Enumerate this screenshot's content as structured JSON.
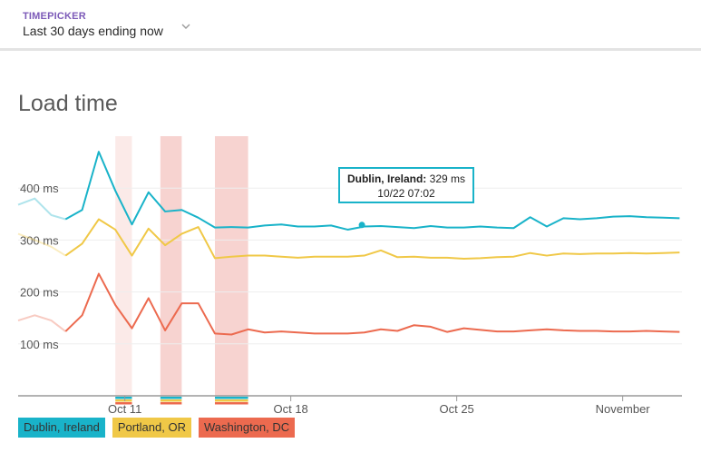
{
  "timepicker": {
    "label": "TIMEPICKER",
    "value": "Last 30 days ending now"
  },
  "chart": {
    "title": "Load time"
  },
  "tooltip": {
    "location": "Dublin, Ireland:",
    "value": "329 ms",
    "time": "10/22 07:02"
  },
  "colors": {
    "dublin": "#19b3c9",
    "portland": "#f0c847",
    "washington": "#ec6a4f",
    "incident": "#ee9e97"
  },
  "chart_data": {
    "type": "line",
    "title": "Load time",
    "xlabel": "",
    "ylabel": "",
    "ylim": [
      0,
      500
    ],
    "y_ticks": [
      "100 ms",
      "200 ms",
      "300 ms",
      "400 ms"
    ],
    "y_tick_values": [
      100,
      200,
      300,
      400
    ],
    "x_tick_labels": [
      "Oct 11",
      "Oct 18",
      "Oct 25",
      "November"
    ],
    "x_tick_positions": [
      10.5,
      17.5,
      24.5,
      31.5
    ],
    "xlim": [
      6,
      34
    ],
    "x": [
      6.0,
      6.7,
      7.4,
      8.0,
      8.7,
      9.4,
      10.1,
      10.8,
      11.5,
      12.2,
      12.9,
      13.6,
      14.3,
      15.0,
      15.7,
      16.4,
      17.1,
      17.8,
      18.5,
      19.2,
      19.9,
      20.6,
      21.3,
      22.0,
      22.7,
      23.4,
      24.1,
      24.8,
      25.5,
      26.2,
      26.9,
      27.6,
      28.3,
      29.0,
      29.7,
      30.4,
      31.1,
      31.8,
      32.5,
      33.2,
      33.9
    ],
    "series": [
      {
        "name": "Dublin, Ireland",
        "values": [
          368,
          380,
          348,
          340,
          358,
          470,
          395,
          330,
          392,
          355,
          358,
          343,
          324,
          325,
          324,
          328,
          330,
          326,
          326,
          328,
          320,
          326,
          327,
          325,
          323,
          327,
          324,
          324,
          326,
          324,
          323,
          344,
          326,
          342,
          340,
          342,
          345,
          346,
          344,
          343,
          342
        ]
      },
      {
        "name": "Portland, OR",
        "values": [
          312,
          300,
          287,
          270,
          293,
          340,
          320,
          270,
          322,
          290,
          312,
          325,
          265,
          268,
          270,
          270,
          268,
          266,
          268,
          268,
          268,
          270,
          280,
          267,
          268,
          266,
          266,
          264,
          265,
          267,
          268,
          275,
          270,
          274,
          273,
          274,
          274,
          275,
          274,
          275,
          276
        ]
      },
      {
        "name": "Washington, DC",
        "values": [
          145,
          155,
          145,
          124,
          155,
          235,
          175,
          130,
          188,
          126,
          178,
          178,
          120,
          118,
          128,
          122,
          124,
          122,
          120,
          120,
          120,
          122,
          128,
          125,
          136,
          133,
          123,
          130,
          127,
          124,
          124,
          126,
          128,
          126,
          125,
          125,
          124,
          124,
          125,
          124,
          123
        ]
      }
    ],
    "hover_point": {
      "series": "Dublin, Ireland",
      "x": 20.5,
      "y": 329
    },
    "incidents": [
      [
        10.1,
        10.8
      ],
      [
        12.0,
        12.9
      ],
      [
        14.3,
        15.7
      ]
    ],
    "grid": true
  },
  "legend": [
    {
      "label": "Dublin, Ireland"
    },
    {
      "label": "Portland, OR"
    },
    {
      "label": "Washington, DC"
    }
  ]
}
